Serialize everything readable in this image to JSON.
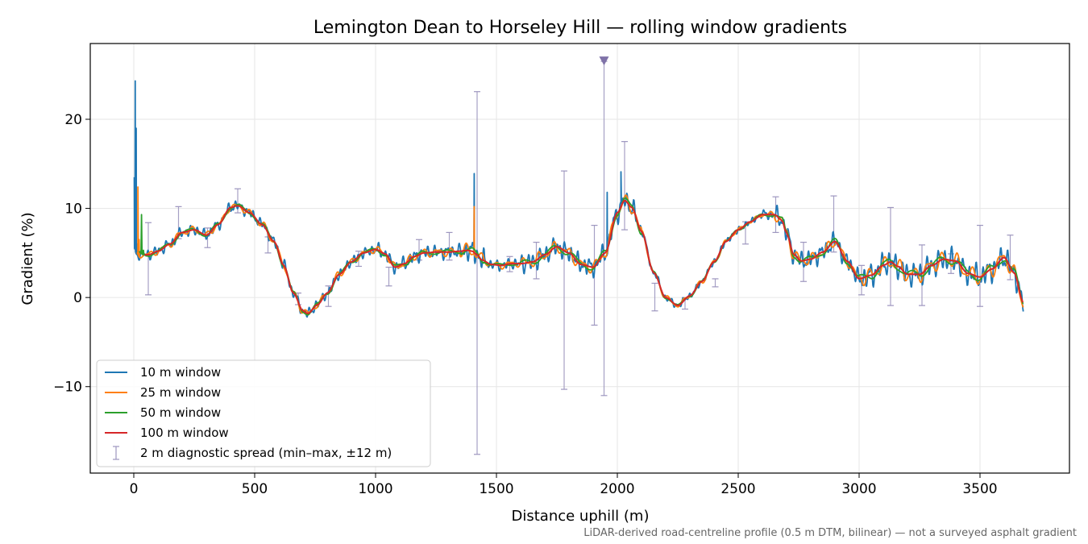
{
  "chart_data": {
    "type": "line",
    "title": "Lemington Dean to Horseley Hill — rolling window gradients",
    "xlabel": "Distance uphill (m)",
    "ylabel": "Gradient (%)",
    "xlim": [
      -180,
      3870
    ],
    "ylim": [
      -19.7,
      28.5
    ],
    "xticks": [
      0,
      500,
      1000,
      1500,
      2000,
      2500,
      3000,
      3500
    ],
    "yticks": [
      -10,
      0,
      10,
      20
    ],
    "xtick_labels": [
      "0",
      "500",
      "1000",
      "1500",
      "2000",
      "2500",
      "3000",
      "3500"
    ],
    "ytick_labels": [
      "−10",
      "0",
      "10",
      "20"
    ],
    "grid": true,
    "legend_placement": "lower-left",
    "footnote": "LiDAR-derived road-centreline profile (0.5 m DTM, bilinear) — not a surveyed asphalt gradient",
    "base_profile": {
      "x": [
        5,
        20,
        60,
        100,
        150,
        200,
        250,
        300,
        350,
        400,
        430,
        480,
        530,
        580,
        620,
        660,
        700,
        720,
        760,
        800,
        850,
        900,
        950,
        1000,
        1040,
        1080,
        1120,
        1160,
        1200,
        1250,
        1300,
        1350,
        1380,
        1400,
        1420,
        1440,
        1480,
        1520,
        1560,
        1600,
        1650,
        1700,
        1750,
        1800,
        1850,
        1900,
        1950,
        2000,
        2030,
        2060,
        2100,
        2150,
        2200,
        2250,
        2300,
        2350,
        2400,
        2450,
        2500,
        2550,
        2600,
        2650,
        2680,
        2700,
        2730,
        2760,
        2800,
        2850,
        2900,
        2950,
        3000,
        3050,
        3100,
        3130,
        3160,
        3200,
        3250,
        3300,
        3350,
        3400,
        3450,
        3500,
        3550,
        3600,
        3640,
        3680
      ],
      "y": [
        5.0,
        4.8,
        4.8,
        5.2,
        6.0,
        7.3,
        7.6,
        7.0,
        8.2,
        10.1,
        10.3,
        9.5,
        8.2,
        6.3,
        3.6,
        0.5,
        -1.5,
        -1.8,
        -0.8,
        0.5,
        2.6,
        4.0,
        5.0,
        5.4,
        4.9,
        3.4,
        3.8,
        4.6,
        5.0,
        5.1,
        5.1,
        5.2,
        5.3,
        5.2,
        4.8,
        4.2,
        3.7,
        3.6,
        3.8,
        3.8,
        4.0,
        4.8,
        5.7,
        5.0,
        3.7,
        3.4,
        5.0,
        9.5,
        10.9,
        10.1,
        7.4,
        2.8,
        0.0,
        -0.9,
        0.2,
        1.8,
        4.0,
        6.3,
        7.6,
        8.5,
        9.3,
        9.3,
        8.7,
        7.2,
        4.8,
        4.1,
        4.3,
        5.1,
        6.3,
        4.1,
        2.1,
        2.5,
        3.6,
        4.0,
        3.5,
        2.6,
        2.6,
        3.6,
        4.3,
        4.1,
        2.7,
        2.3,
        3.2,
        4.5,
        2.8,
        -0.6
      ]
    },
    "series": [
      {
        "name": "10 m window",
        "window_m": 10,
        "color": "#1f77b4",
        "spikes": [
          {
            "x": 2,
            "y": 13.5
          },
          {
            "x": 6,
            "y": 24.3
          },
          {
            "x": 10,
            "y": 19.0
          },
          {
            "x": 14,
            "y": 6.0
          },
          {
            "x": 1408,
            "y": 13.9
          },
          {
            "x": 1958,
            "y": 11.8
          },
          {
            "x": 2015,
            "y": 14.1
          }
        ]
      },
      {
        "name": "25 m window",
        "window_m": 25,
        "color": "#ff7f0e",
        "spikes": [
          {
            "x": 12,
            "y": 5.0
          },
          {
            "x": 17,
            "y": 12.4
          },
          {
            "x": 22,
            "y": 6.5
          },
          {
            "x": 1408,
            "y": 10.2
          }
        ]
      },
      {
        "name": "50 m window",
        "window_m": 50,
        "color": "#2ca02c",
        "spikes": [
          {
            "x": 22,
            "y": 5.2
          },
          {
            "x": 32,
            "y": 9.3
          },
          {
            "x": 40,
            "y": 5.3
          }
        ]
      },
      {
        "name": "100 m window",
        "window_m": 100,
        "color": "#d62728",
        "spikes": []
      }
    ],
    "diagnostic_spread": {
      "name": "2 m diagnostic spread (min–max, ±12 m)",
      "color": "#9d96bf",
      "x": [
        60,
        185,
        305,
        430,
        555,
        680,
        805,
        930,
        1055,
        1180,
        1305,
        1420,
        1555,
        1665,
        1780,
        1905,
        1945,
        2030,
        2155,
        2280,
        2405,
        2530,
        2655,
        2770,
        2895,
        3010,
        3130,
        3260,
        3380,
        3500,
        3625
      ],
      "lo": [
        0.3,
        6.6,
        5.6,
        9.5,
        5.0,
        -0.8,
        -1.0,
        3.5,
        1.3,
        4.2,
        4.2,
        -17.6,
        2.9,
        2.1,
        -10.3,
        -3.1,
        -11.0,
        7.6,
        -1.5,
        -1.3,
        1.2,
        6.0,
        7.3,
        1.8,
        5.1,
        0.3,
        -0.9,
        -0.9,
        2.7,
        -1.0,
        2.0
      ],
      "hi": [
        8.4,
        10.2,
        7.8,
        12.2,
        6.8,
        0.5,
        1.3,
        5.2,
        3.4,
        6.5,
        7.3,
        23.1,
        4.6,
        6.2,
        14.2,
        8.1,
        26.5,
        17.5,
        1.6,
        0.0,
        2.1,
        8.5,
        11.3,
        6.2,
        11.4,
        3.6,
        10.1,
        5.9,
        4.9,
        8.1,
        7.0
      ],
      "capped_marker": {
        "x": 1945,
        "y": 26.5
      }
    }
  },
  "legend": {
    "entries": [
      {
        "label": "10 m window",
        "color": "#1f77b4",
        "kind": "line"
      },
      {
        "label": "25 m window",
        "color": "#ff7f0e",
        "kind": "line"
      },
      {
        "label": "50 m window",
        "color": "#2ca02c",
        "kind": "line"
      },
      {
        "label": "100 m window",
        "color": "#d62728",
        "kind": "line"
      },
      {
        "label": "2 m diagnostic spread (min–max, ±12 m)",
        "color": "#9d96bf",
        "kind": "errorbar"
      }
    ]
  }
}
